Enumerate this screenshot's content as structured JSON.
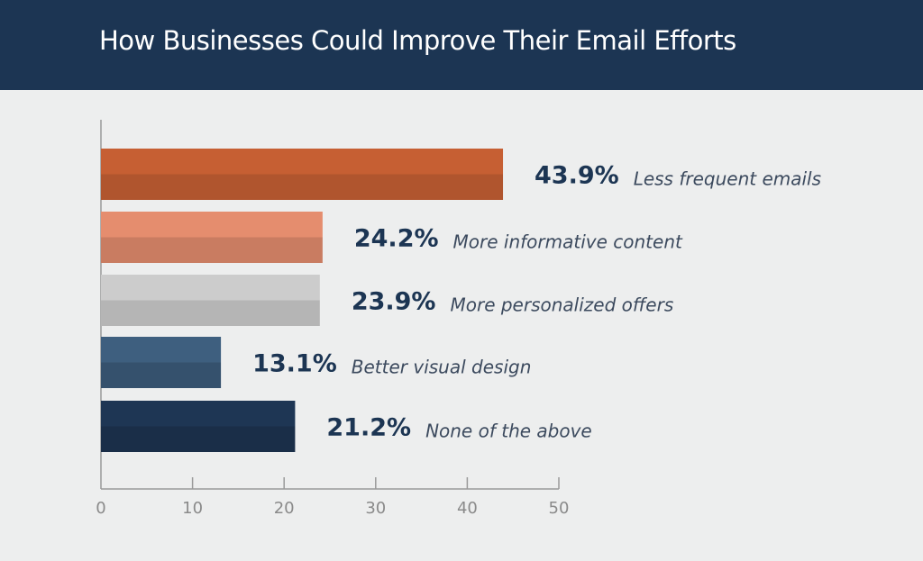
{
  "chart_data": {
    "type": "bar",
    "orientation": "horizontal",
    "title": "How Businesses Could Improve Their Email Efforts",
    "categories": [
      "Less frequent emails",
      "More informative content",
      "More personalized offers",
      "Better visual design",
      "None of the above"
    ],
    "values": [
      43.9,
      24.2,
      23.9,
      13.1,
      21.2
    ],
    "value_labels": [
      "43.9%",
      "24.2%",
      "23.9%",
      "13.1%",
      "21.2%"
    ],
    "colors": [
      [
        "#c65f33",
        "#b0552e"
      ],
      [
        "#e58d6e",
        "#c97c61"
      ],
      [
        "#cccccc",
        "#b5b5b5"
      ],
      [
        "#3e5f7f",
        "#35516d"
      ],
      [
        "#1e3654",
        "#1a2e48"
      ]
    ],
    "xlim": [
      0,
      50
    ],
    "xticks": [
      0,
      10,
      20,
      30,
      40,
      50
    ],
    "xticklabels": [
      "0",
      "10",
      "20",
      "30",
      "40",
      "50"
    ],
    "grid": false
  },
  "header_color": "#1c3553"
}
